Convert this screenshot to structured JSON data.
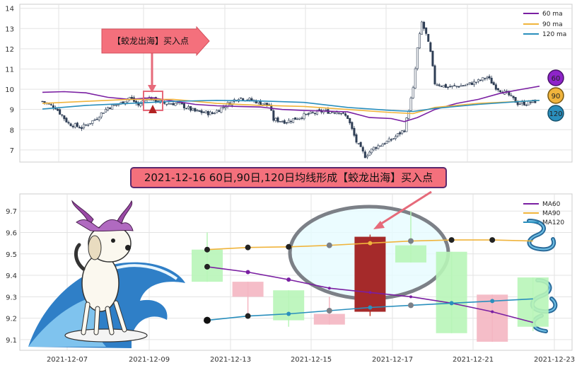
{
  "banner": {
    "text": "2021-12-16 60日,90日,120日均线形成【蛟龙出海】买入点"
  },
  "callout": {
    "text": "【蛟龙出海】买入点"
  },
  "badges": {
    "ma60": "60",
    "ma90": "90",
    "ma120": "120"
  },
  "colors": {
    "up": "#b8f5b8",
    "down": "#f4b6c2",
    "signal": "#a52a2a",
    "ma60": "#7a1fa2",
    "ma90": "#f0b43c",
    "ma120": "#2a8fbd",
    "overview_candle": "#2f3e55"
  },
  "chart_data": [
    {
      "type": "candlestick",
      "name": "overview",
      "ylim": [
        6.4,
        14.2
      ],
      "yticks": [
        7,
        8,
        9,
        10,
        11,
        12,
        13,
        14
      ],
      "grid": true,
      "legend": {
        "placement": "top-right",
        "entries": [
          "60 ma",
          "90 ma",
          "120 ma"
        ]
      },
      "x_range": [
        0,
        240
      ],
      "anchors": [
        [
          0,
          9.4
        ],
        [
          6,
          9.1
        ],
        [
          12,
          8.3
        ],
        [
          18,
          8.1
        ],
        [
          24,
          8.5
        ],
        [
          30,
          9.1
        ],
        [
          36,
          9.3
        ],
        [
          40,
          9.6
        ],
        [
          44,
          9.2
        ],
        [
          48,
          9.6
        ],
        [
          56,
          9.3
        ],
        [
          62,
          9.3
        ],
        [
          70,
          8.9
        ],
        [
          78,
          8.8
        ],
        [
          84,
          9.2
        ],
        [
          90,
          9.6
        ],
        [
          98,
          9.4
        ],
        [
          104,
          9.2
        ],
        [
          106,
          8.5
        ],
        [
          112,
          8.4
        ],
        [
          120,
          8.7
        ],
        [
          128,
          8.9
        ],
        [
          136,
          8.9
        ],
        [
          140,
          8.6
        ],
        [
          144,
          7.4
        ],
        [
          148,
          6.7
        ],
        [
          152,
          7.1
        ],
        [
          160,
          7.5
        ],
        [
          166,
          8.0
        ],
        [
          168,
          9.0
        ],
        [
          170,
          10.0
        ],
        [
          172,
          12.0
        ],
        [
          174,
          13.3
        ],
        [
          176,
          12.7
        ],
        [
          178,
          11.8
        ],
        [
          180,
          10.3
        ],
        [
          186,
          10.1
        ],
        [
          194,
          10.2
        ],
        [
          200,
          10.4
        ],
        [
          204,
          10.6
        ],
        [
          208,
          10.1
        ],
        [
          214,
          9.7
        ],
        [
          218,
          9.3
        ],
        [
          222,
          9.3
        ],
        [
          226,
          9.4
        ]
      ],
      "ma60": [
        [
          0,
          9.85
        ],
        [
          10,
          9.88
        ],
        [
          20,
          9.82
        ],
        [
          30,
          9.6
        ],
        [
          40,
          9.5
        ],
        [
          50,
          9.58
        ],
        [
          60,
          9.42
        ],
        [
          70,
          9.25
        ],
        [
          80,
          9.18
        ],
        [
          90,
          9.15
        ],
        [
          100,
          9.12
        ],
        [
          110,
          9.0
        ],
        [
          120,
          8.95
        ],
        [
          130,
          8.92
        ],
        [
          140,
          8.88
        ],
        [
          150,
          8.6
        ],
        [
          160,
          8.55
        ],
        [
          166,
          8.4
        ],
        [
          172,
          8.6
        ],
        [
          180,
          9.0
        ],
        [
          190,
          9.3
        ],
        [
          200,
          9.5
        ],
        [
          210,
          9.8
        ],
        [
          220,
          10.0
        ],
        [
          228,
          10.15
        ]
      ],
      "ma90": [
        [
          0,
          9.3
        ],
        [
          20,
          9.4
        ],
        [
          40,
          9.5
        ],
        [
          60,
          9.5
        ],
        [
          80,
          9.3
        ],
        [
          100,
          9.2
        ],
        [
          120,
          9.15
        ],
        [
          140,
          9.0
        ],
        [
          160,
          8.85
        ],
        [
          170,
          8.8
        ],
        [
          180,
          9.1
        ],
        [
          200,
          9.3
        ],
        [
          220,
          9.4
        ],
        [
          228,
          9.45
        ]
      ],
      "ma120": [
        [
          0,
          9.02
        ],
        [
          20,
          9.2
        ],
        [
          40,
          9.3
        ],
        [
          60,
          9.4
        ],
        [
          80,
          9.45
        ],
        [
          100,
          9.42
        ],
        [
          120,
          9.35
        ],
        [
          140,
          9.1
        ],
        [
          160,
          8.95
        ],
        [
          170,
          8.9
        ],
        [
          180,
          9.05
        ],
        [
          200,
          9.25
        ],
        [
          220,
          9.4
        ],
        [
          228,
          9.45
        ]
      ]
    },
    {
      "type": "candlestick",
      "name": "zoom",
      "ylim": [
        9.05,
        9.78
      ],
      "yticks": [
        9.1,
        9.2,
        9.3,
        9.4,
        9.5,
        9.6,
        9.7
      ],
      "xticks": [
        "2021-12-07",
        "2021-12-09",
        "2021-12-13",
        "2021-12-15",
        "2021-12-17",
        "2021-12-21",
        "2021-12-23"
      ],
      "grid": true,
      "legend": {
        "placement": "top-right",
        "entries": [
          "MA60",
          "MA90",
          "MA120"
        ]
      },
      "candles": [
        {
          "open": 9.52,
          "close": 9.37,
          "high": 9.6,
          "low": 9.37,
          "dir": "up"
        },
        {
          "open": 9.37,
          "close": 9.3,
          "high": 9.37,
          "low": 9.2,
          "dir": "down"
        },
        {
          "open": 9.33,
          "close": 9.19,
          "high": 9.33,
          "low": 9.16,
          "dir": "up"
        },
        {
          "open": 9.22,
          "close": 9.17,
          "high": 9.3,
          "low": 9.17,
          "dir": "down"
        },
        {
          "open": 9.58,
          "close": 9.23,
          "high": 9.59,
          "low": 9.21,
          "dir": "signal"
        },
        {
          "open": 9.54,
          "close": 9.46,
          "high": 9.7,
          "low": 9.46,
          "dir": "up"
        },
        {
          "open": 9.51,
          "close": 9.13,
          "high": 9.51,
          "low": 9.13,
          "dir": "up"
        },
        {
          "open": 9.31,
          "close": 9.09,
          "high": 9.31,
          "low": 9.09,
          "dir": "down"
        },
        {
          "open": 9.39,
          "close": 9.16,
          "high": 9.39,
          "low": 9.14,
          "dir": "up"
        }
      ],
      "ma60": [
        9.44,
        9.415,
        9.38,
        9.34,
        9.32,
        9.3,
        9.27,
        9.23,
        9.18
      ],
      "ma90": [
        9.52,
        9.53,
        9.533,
        9.54,
        9.55,
        9.56,
        9.565,
        9.565,
        9.56
      ],
      "ma120": [
        9.19,
        9.21,
        9.22,
        9.235,
        9.25,
        9.26,
        9.27,
        9.28,
        9.29
      ]
    }
  ]
}
